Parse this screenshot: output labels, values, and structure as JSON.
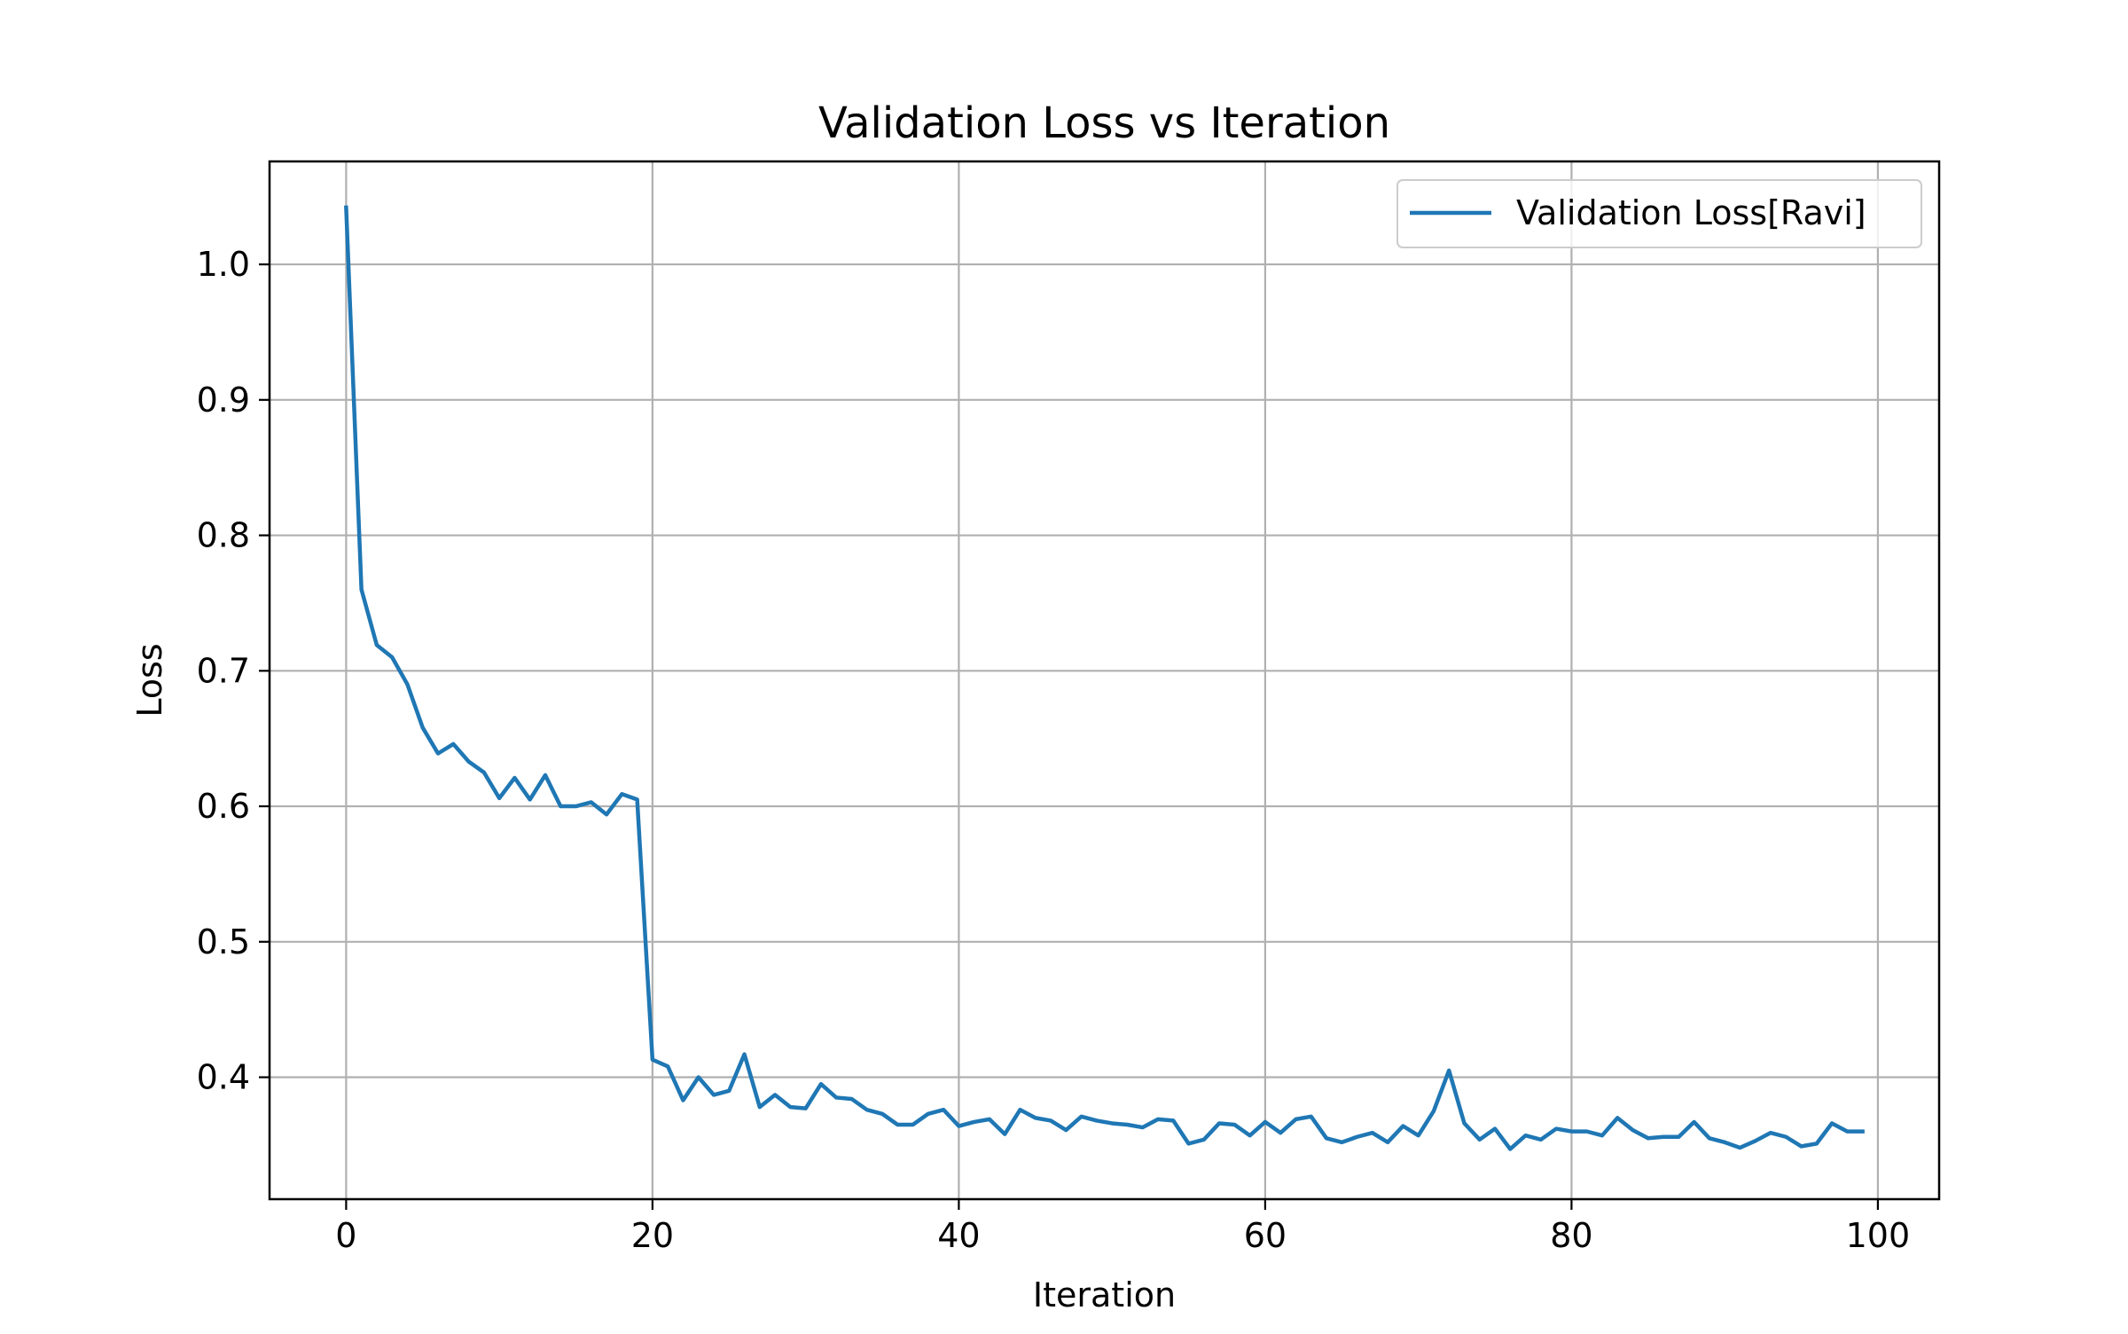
{
  "chart_data": {
    "type": "line",
    "title": "Validation Loss vs Iteration",
    "xlabel": "Iteration",
    "ylabel": "Loss",
    "xlim": [
      -5,
      104
    ],
    "ylim": [
      0.31,
      1.076
    ],
    "xticks": [
      0,
      20,
      40,
      60,
      80,
      100
    ],
    "xtick_labels": [
      "0",
      "20",
      "40",
      "60",
      "80",
      "100"
    ],
    "yticks": [
      0.4,
      0.5,
      0.6,
      0.7,
      0.8,
      0.9,
      1.0
    ],
    "ytick_labels": [
      "0.4",
      "0.5",
      "0.6",
      "0.7",
      "0.8",
      "0.9",
      "1.0"
    ],
    "grid": true,
    "legend_position": "top-right",
    "series": [
      {
        "name": "Validation Loss[Ravi]",
        "color": "#1f77b4",
        "x": [
          0,
          1,
          2,
          3,
          4,
          5,
          6,
          7,
          8,
          9,
          10,
          11,
          12,
          13,
          14,
          15,
          16,
          17,
          18,
          19,
          20,
          21,
          22,
          23,
          24,
          25,
          26,
          27,
          28,
          29,
          30,
          31,
          32,
          33,
          34,
          35,
          36,
          37,
          38,
          39,
          40,
          41,
          42,
          43,
          44,
          45,
          46,
          47,
          48,
          49,
          50,
          51,
          52,
          53,
          54,
          55,
          56,
          57,
          58,
          59,
          60,
          61,
          62,
          63,
          64,
          65,
          66,
          67,
          68,
          69,
          70,
          71,
          72,
          73,
          74,
          75,
          76,
          77,
          78,
          79,
          80,
          81,
          82,
          83,
          84,
          85,
          86,
          87,
          88,
          89,
          90,
          91,
          92,
          93,
          94,
          95,
          96,
          97,
          98,
          99
        ],
        "values": [
          1.042,
          0.76,
          0.719,
          0.71,
          0.69,
          0.658,
          0.639,
          0.646,
          0.633,
          0.625,
          0.606,
          0.621,
          0.605,
          0.623,
          0.6,
          0.6,
          0.603,
          0.594,
          0.609,
          0.605,
          0.413,
          0.408,
          0.383,
          0.4,
          0.387,
          0.39,
          0.417,
          0.378,
          0.387,
          0.378,
          0.377,
          0.395,
          0.385,
          0.384,
          0.376,
          0.373,
          0.365,
          0.365,
          0.373,
          0.376,
          0.364,
          0.367,
          0.369,
          0.358,
          0.376,
          0.37,
          0.368,
          0.361,
          0.371,
          0.368,
          0.366,
          0.365,
          0.363,
          0.369,
          0.368,
          0.351,
          0.354,
          0.366,
          0.365,
          0.357,
          0.367,
          0.359,
          0.369,
          0.371,
          0.355,
          0.352,
          0.356,
          0.359,
          0.352,
          0.364,
          0.357,
          0.375,
          0.405,
          0.366,
          0.354,
          0.362,
          0.347,
          0.357,
          0.354,
          0.362,
          0.36,
          0.36,
          0.357,
          0.37,
          0.361,
          0.355,
          0.356,
          0.356,
          0.367,
          0.355,
          0.352,
          0.348,
          0.353,
          0.359,
          0.356,
          0.349,
          0.351,
          0.366,
          0.36,
          0.36
        ]
      }
    ]
  }
}
